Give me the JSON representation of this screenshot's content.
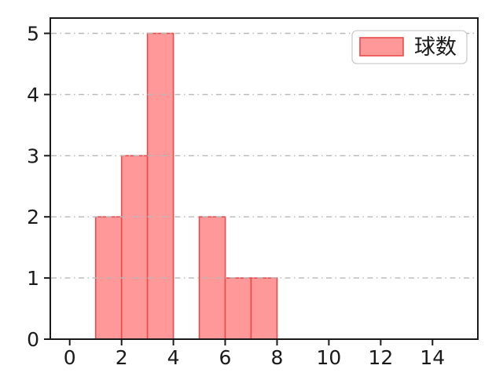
{
  "chart_data": {
    "type": "bar",
    "subtype": "histogram",
    "title": "",
    "xlabel": "",
    "ylabel": "",
    "histogram": {
      "bin_edges": [
        1,
        2,
        3,
        4,
        5,
        6,
        7,
        8
      ],
      "counts": [
        2,
        3,
        5,
        0,
        2,
        1,
        1
      ]
    },
    "x_tick_labels": [
      "0",
      "2",
      "4",
      "6",
      "8",
      "10",
      "12",
      "14"
    ],
    "x_tick_values": [
      0,
      2,
      4,
      6,
      8,
      10,
      12,
      14
    ],
    "y_tick_labels": [
      "0",
      "1",
      "2",
      "3",
      "4",
      "5"
    ],
    "y_tick_values": [
      0,
      1,
      2,
      3,
      4,
      5
    ],
    "xlim": [
      -0.75,
      15.75
    ],
    "ylim": [
      0,
      5.25
    ],
    "grid": {
      "axis": "y",
      "line_style": "dash-dot",
      "drawn_above_bars": true
    },
    "legend": {
      "label": "球数",
      "position": "upper right"
    },
    "colors": {
      "bar_fill": "#FF9999",
      "bar_edge": "#EA4A4A",
      "grid": "#B8B8B8",
      "axis": "#1A1A1A",
      "tick_label": "#1A1A1A",
      "legend_border": "#CCCCCC",
      "legend_bg": "#FFFFFF",
      "background": "#FFFFFF"
    }
  }
}
